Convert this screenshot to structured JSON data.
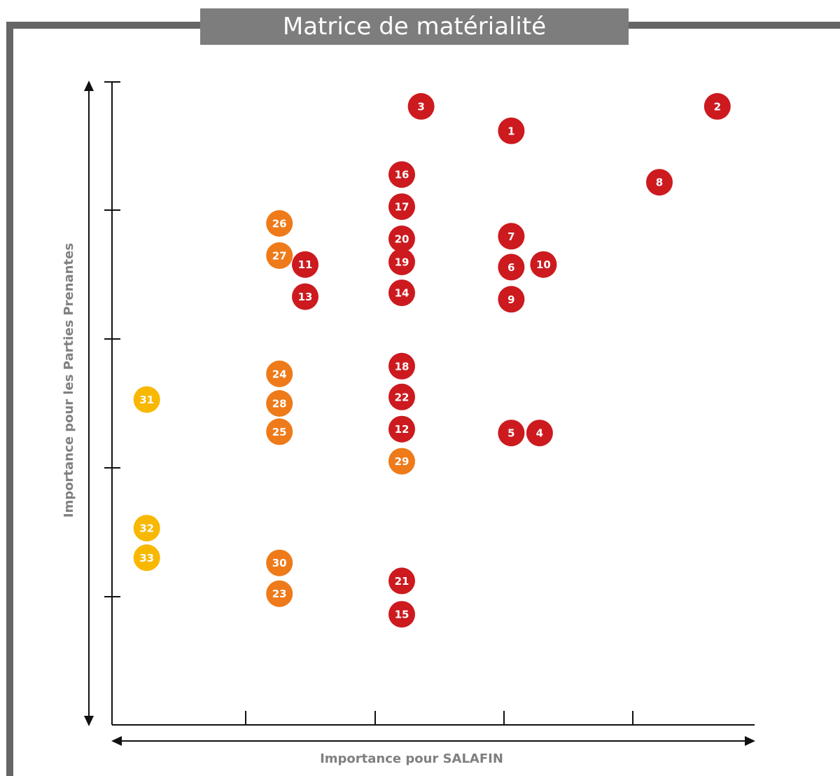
{
  "chart_data": {
    "type": "scatter",
    "title": "Matrice de matérialité",
    "xlabel": "Importance pour SALAFIN",
    "ylabel": "Importance pour les Parties Prenantes",
    "xlim": [
      0,
      5
    ],
    "ylim": [
      0,
      5
    ],
    "grid": false,
    "colors": {
      "red": "#cc1a1f",
      "orange": "#ee7a1a",
      "yellow": "#f8b800",
      "frame": "#666666",
      "title_bg": "#7d7d7d",
      "axis": "#111111"
    },
    "points": [
      {
        "label": "1",
        "x": 3.1,
        "y": 4.62,
        "color": "red"
      },
      {
        "label": "2",
        "x": 4.7,
        "y": 4.81,
        "color": "red"
      },
      {
        "label": "3",
        "x": 2.4,
        "y": 4.81,
        "color": "red"
      },
      {
        "label": "4",
        "x": 3.32,
        "y": 2.27,
        "color": "red"
      },
      {
        "label": "5",
        "x": 3.1,
        "y": 2.27,
        "color": "red"
      },
      {
        "label": "6",
        "x": 3.1,
        "y": 3.56,
        "color": "red"
      },
      {
        "label": "7",
        "x": 3.1,
        "y": 3.8,
        "color": "red"
      },
      {
        "label": "8",
        "x": 4.25,
        "y": 4.22,
        "color": "red"
      },
      {
        "label": "9",
        "x": 3.1,
        "y": 3.31,
        "color": "red"
      },
      {
        "label": "10",
        "x": 3.35,
        "y": 3.58,
        "color": "red"
      },
      {
        "label": "11",
        "x": 1.5,
        "y": 3.58,
        "color": "red"
      },
      {
        "label": "12",
        "x": 2.25,
        "y": 2.3,
        "color": "red"
      },
      {
        "label": "13",
        "x": 1.5,
        "y": 3.33,
        "color": "red"
      },
      {
        "label": "14",
        "x": 2.25,
        "y": 3.36,
        "color": "red"
      },
      {
        "label": "15",
        "x": 2.25,
        "y": 0.86,
        "color": "red"
      },
      {
        "label": "16",
        "x": 2.25,
        "y": 4.28,
        "color": "red"
      },
      {
        "label": "17",
        "x": 2.25,
        "y": 4.03,
        "color": "red"
      },
      {
        "label": "18",
        "x": 2.25,
        "y": 2.79,
        "color": "red"
      },
      {
        "label": "19",
        "x": 2.25,
        "y": 3.6,
        "color": "red"
      },
      {
        "label": "20",
        "x": 2.25,
        "y": 3.78,
        "color": "red"
      },
      {
        "label": "21",
        "x": 2.25,
        "y": 1.12,
        "color": "red"
      },
      {
        "label": "22",
        "x": 2.25,
        "y": 2.55,
        "color": "red"
      },
      {
        "label": "23",
        "x": 1.3,
        "y": 1.02,
        "color": "orange"
      },
      {
        "label": "24",
        "x": 1.3,
        "y": 2.73,
        "color": "orange"
      },
      {
        "label": "25",
        "x": 1.3,
        "y": 2.28,
        "color": "orange"
      },
      {
        "label": "26",
        "x": 1.3,
        "y": 3.9,
        "color": "orange"
      },
      {
        "label": "27",
        "x": 1.3,
        "y": 3.65,
        "color": "orange"
      },
      {
        "label": "28",
        "x": 1.3,
        "y": 2.5,
        "color": "orange"
      },
      {
        "label": "29",
        "x": 2.25,
        "y": 2.05,
        "color": "orange"
      },
      {
        "label": "30",
        "x": 1.3,
        "y": 1.26,
        "color": "orange"
      },
      {
        "label": "31",
        "x": 0.27,
        "y": 2.53,
        "color": "yellow"
      },
      {
        "label": "32",
        "x": 0.27,
        "y": 1.53,
        "color": "yellow"
      },
      {
        "label": "33",
        "x": 0.27,
        "y": 1.3,
        "color": "yellow"
      }
    ]
  }
}
